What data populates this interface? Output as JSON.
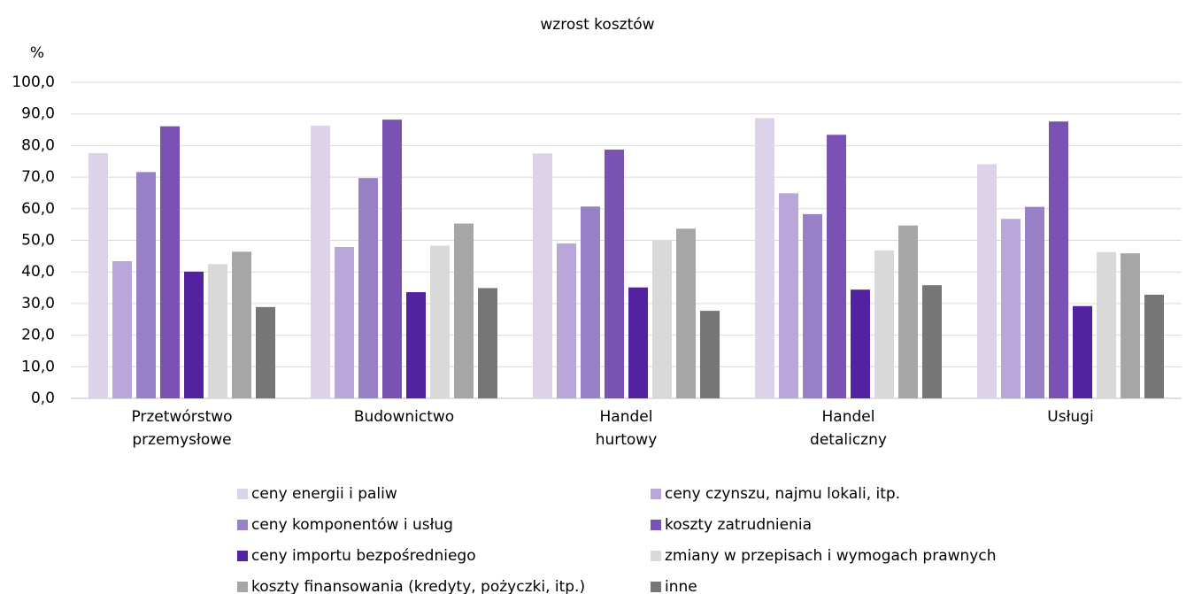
{
  "chart_data": {
    "type": "bar",
    "title": "wzrost kosztów",
    "ylabel": "%",
    "categories": [
      "Przetwórstwo przemysłowe",
      "Budownictwo",
      "Handel hurtowy",
      "Handel detaliczny",
      "Usługi"
    ],
    "series": [
      {
        "name": "ceny energii i paliw",
        "color": "#dcd3ea",
        "values": [
          77.6,
          86.3,
          77.5,
          88.7,
          74.1
        ]
      },
      {
        "name": "ceny czynszu, najmu lokali, itp.",
        "color": "#b9a7d9",
        "values": [
          43.4,
          47.9,
          49.0,
          64.9,
          56.8
        ]
      },
      {
        "name": "ceny komponentów i usług",
        "color": "#9880c6",
        "values": [
          71.6,
          69.7,
          60.7,
          58.3,
          60.6
        ]
      },
      {
        "name": "koszty zatrudnienia",
        "color": "#7a52b4",
        "values": [
          86.1,
          88.2,
          78.7,
          83.4,
          87.6
        ]
      },
      {
        "name": "ceny importu bezpośredniego",
        "color": "#5222a0",
        "values": [
          40.1,
          33.6,
          35.1,
          34.4,
          29.2
        ]
      },
      {
        "name": "zmiany w przepisach i wymogach prawnych",
        "color": "#d9d9d9",
        "values": [
          42.5,
          48.3,
          50.0,
          46.8,
          46.3
        ]
      },
      {
        "name": "koszty finansowania (kredyty, pożyczki, itp.)",
        "color": "#a6a6a6",
        "values": [
          46.4,
          55.3,
          53.7,
          54.7,
          45.9
        ]
      },
      {
        "name": "inne",
        "color": "#767676",
        "values": [
          28.9,
          34.9,
          27.7,
          35.8,
          32.8
        ]
      }
    ],
    "ylim": [
      0,
      100
    ],
    "yticks": [
      {
        "value": 0,
        "label": "0,0"
      },
      {
        "value": 10,
        "label": "10,0"
      },
      {
        "value": 20,
        "label": "20,0"
      },
      {
        "value": 30,
        "label": "30,0"
      },
      {
        "value": 40,
        "label": "40,0"
      },
      {
        "value": 50,
        "label": "50,0"
      },
      {
        "value": 60,
        "label": "60,0"
      },
      {
        "value": 70,
        "label": "70,0"
      },
      {
        "value": 80,
        "label": "80,0"
      },
      {
        "value": 90,
        "label": "90,0"
      },
      {
        "value": 100,
        "label": "100,0"
      }
    ],
    "grid": true
  }
}
